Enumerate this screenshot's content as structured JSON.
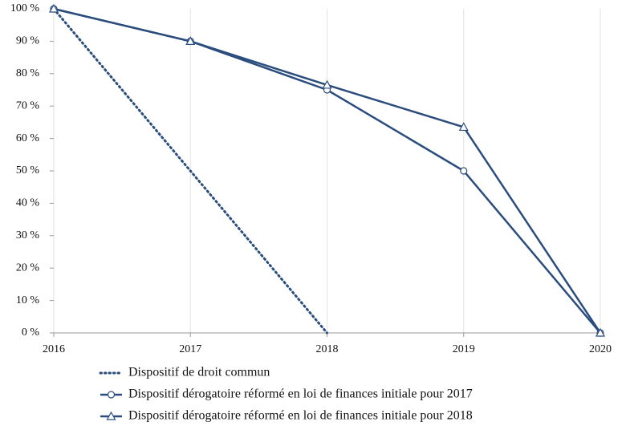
{
  "chart_data": {
    "type": "line",
    "x": [
      2016,
      2017,
      2018,
      2019,
      2020
    ],
    "xlim": [
      2016,
      2020
    ],
    "xticks": [
      2016,
      2017,
      2018,
      2019,
      2020
    ],
    "ylim": [
      0,
      100
    ],
    "yticks": [
      {
        "value": 0,
        "label": "0 %"
      },
      {
        "value": 10,
        "label": "10 %"
      },
      {
        "value": 20,
        "label": "20 %"
      },
      {
        "value": 30,
        "label": "30 %"
      },
      {
        "value": 40,
        "label": "40 %"
      },
      {
        "value": 50,
        "label": "50 %"
      },
      {
        "value": 60,
        "label": "60 %"
      },
      {
        "value": 70,
        "label": "70 %"
      },
      {
        "value": 80,
        "label": "80 %"
      },
      {
        "value": 90,
        "label": "90 %"
      },
      {
        "value": 100,
        "label": "100 %"
      }
    ],
    "grid": "x",
    "series": [
      {
        "name": "Dispositif de droit commun",
        "color": "#2b4d7e",
        "line_style": "dotted",
        "marker": "none",
        "values": [
          100,
          50,
          0,
          null,
          null
        ]
      },
      {
        "name": "Dispositif dérogatoire réformé en loi de finances initiale pour 2017",
        "color": "#2b4d7e",
        "line_style": "solid",
        "marker": "circle",
        "values": [
          100,
          90,
          75,
          50,
          0
        ]
      },
      {
        "name": "Dispositif dérogatoire réformé en loi de finances initiale pour 2018",
        "color": "#2b4d7e",
        "line_style": "solid",
        "marker": "triangle",
        "values": [
          100,
          90,
          76.5,
          63.5,
          0
        ]
      }
    ]
  }
}
